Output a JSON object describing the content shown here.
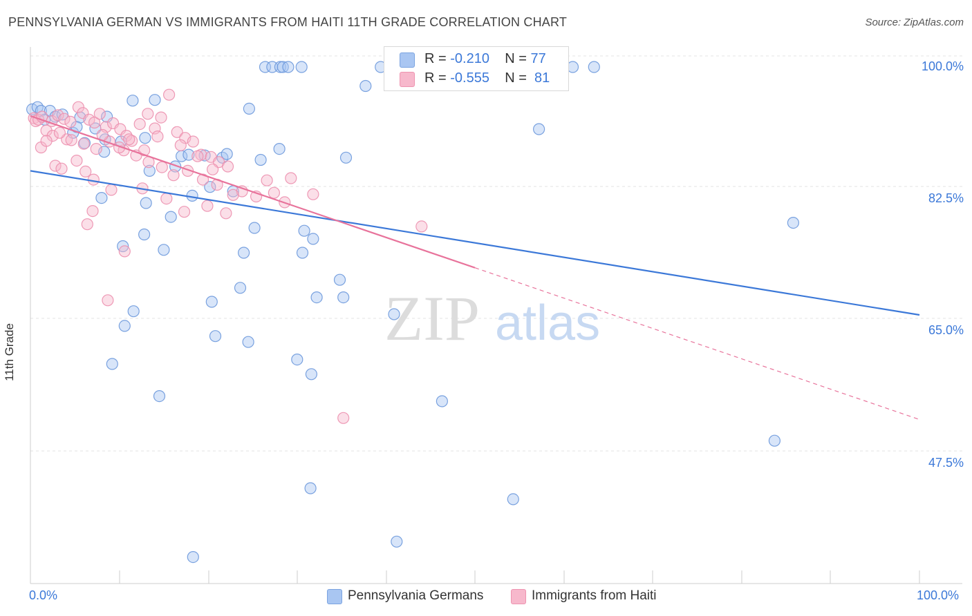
{
  "header": {
    "title": "PENNSYLVANIA GERMAN VS IMMIGRANTS FROM HAITI 11TH GRADE CORRELATION CHART",
    "source": "Source: ZipAtlas.com"
  },
  "watermark": {
    "zip": "ZIP",
    "atlas": "atlas"
  },
  "legend_top": {
    "rows": [
      {
        "r_label": "R = ",
        "r_value": "-0.210",
        "n_label": "N = ",
        "n_value": "77",
        "color": "#a9c6f2"
      },
      {
        "r_label": "R = ",
        "r_value": "-0.555",
        "n_label": "N = ",
        "n_value": "81",
        "color": "#f7b8cc"
      }
    ]
  },
  "legend_bottom": {
    "items": [
      {
        "label": "Pennsylvania Germans",
        "color": "#a9c6f2"
      },
      {
        "label": "Immigrants from Haiti",
        "color": "#f7b8cc"
      }
    ]
  },
  "chart_data": {
    "type": "scatter",
    "title": "PENNSYLVANIA GERMAN VS IMMIGRANTS FROM HAITI 11TH GRADE CORRELATION CHART",
    "xlabel": "",
    "ylabel": "11th Grade",
    "x_tick_labels": [
      "0.0%",
      "100.0%"
    ],
    "y_tick_labels": [
      "100.0%",
      "82.5%",
      "65.0%",
      "47.5%"
    ],
    "y_ticks": [
      100.0,
      82.5,
      65.0,
      47.5
    ],
    "xlim": [
      0,
      100
    ],
    "ylim": [
      33,
      102
    ],
    "grid": true,
    "legend_position": "top-center",
    "series": [
      {
        "name": "Pennsylvania Germans",
        "color": "#3b78d8",
        "fill": "#a9c6f2",
        "trend": {
          "x0": 0,
          "y0": 85.8,
          "x1": 100,
          "y1": 66.1,
          "dashed_from": null
        },
        "points": [
          [
            0.2,
            94.2
          ],
          [
            0.8,
            94.5
          ],
          [
            1.2,
            94.0
          ],
          [
            1.6,
            92.8
          ],
          [
            2.2,
            94.0
          ],
          [
            2.8,
            93.2
          ],
          [
            3.6,
            93.5
          ],
          [
            5.6,
            93.1
          ],
          [
            4.8,
            91.0
          ],
          [
            5.2,
            91.8
          ],
          [
            6.1,
            89.6
          ],
          [
            7.3,
            91.6
          ],
          [
            8.4,
            90.1
          ],
          [
            8.3,
            88.4
          ],
          [
            8.6,
            93.2
          ],
          [
            10.2,
            89.8
          ],
          [
            11.5,
            95.4
          ],
          [
            12.9,
            90.3
          ],
          [
            14.0,
            95.5
          ],
          [
            13.4,
            85.8
          ],
          [
            16.3,
            86.4
          ],
          [
            17.0,
            87.8
          ],
          [
            17.8,
            88.0
          ],
          [
            19.6,
            87.9
          ],
          [
            21.6,
            87.6
          ],
          [
            22.1,
            88.1
          ],
          [
            25.9,
            87.3
          ],
          [
            28.0,
            88.8
          ],
          [
            35.5,
            87.6
          ],
          [
            26.4,
            100.0
          ],
          [
            27.2,
            100.0
          ],
          [
            28.1,
            100.0
          ],
          [
            28.4,
            100.0
          ],
          [
            29.0,
            100.0
          ],
          [
            30.5,
            100.0
          ],
          [
            37.7,
            97.4
          ],
          [
            39.4,
            100.0
          ],
          [
            50.0,
            100.0
          ],
          [
            61.0,
            100.0
          ],
          [
            63.4,
            100.0
          ],
          [
            24.6,
            94.3
          ],
          [
            57.2,
            91.5
          ],
          [
            13.0,
            81.4
          ],
          [
            8.0,
            82.1
          ],
          [
            15.8,
            79.5
          ],
          [
            12.8,
            77.1
          ],
          [
            18.2,
            82.4
          ],
          [
            20.2,
            83.6
          ],
          [
            22.8,
            83.0
          ],
          [
            25.2,
            78.0
          ],
          [
            10.4,
            75.5
          ],
          [
            15.0,
            75.0
          ],
          [
            24.0,
            74.6
          ],
          [
            30.6,
            74.6
          ],
          [
            30.8,
            77.6
          ],
          [
            31.8,
            76.5
          ],
          [
            34.8,
            70.9
          ],
          [
            23.6,
            69.8
          ],
          [
            32.2,
            68.5
          ],
          [
            20.4,
            67.9
          ],
          [
            35.2,
            68.5
          ],
          [
            11.6,
            66.6
          ],
          [
            10.6,
            64.6
          ],
          [
            40.9,
            66.2
          ],
          [
            20.8,
            63.2
          ],
          [
            24.5,
            62.4
          ],
          [
            30.0,
            60.0
          ],
          [
            31.6,
            58.0
          ],
          [
            9.2,
            59.4
          ],
          [
            14.5,
            55.0
          ],
          [
            46.3,
            54.3
          ],
          [
            85.8,
            78.7
          ],
          [
            83.7,
            48.9
          ],
          [
            31.5,
            42.4
          ],
          [
            54.3,
            40.9
          ],
          [
            41.2,
            35.1
          ],
          [
            18.3,
            33.0
          ]
        ]
      },
      {
        "name": "Immigrants from Haiti",
        "color": "#e8739b",
        "fill": "#f7b8cc",
        "trend": {
          "x0": 0,
          "y0": 93.3,
          "x1": 100,
          "y1": 51.8,
          "dashed_from": 50
        },
        "points": [
          [
            0.4,
            93.0
          ],
          [
            0.6,
            92.6
          ],
          [
            0.9,
            92.8
          ],
          [
            1.3,
            93.2
          ],
          [
            1.8,
            91.3
          ],
          [
            2.4,
            92.6
          ],
          [
            3.1,
            93.4
          ],
          [
            3.8,
            92.9
          ],
          [
            4.5,
            92.5
          ],
          [
            5.4,
            94.5
          ],
          [
            5.9,
            93.7
          ],
          [
            6.6,
            92.8
          ],
          [
            7.2,
            92.4
          ],
          [
            7.8,
            93.6
          ],
          [
            8.5,
            91.8
          ],
          [
            9.3,
            92.3
          ],
          [
            10.1,
            91.5
          ],
          [
            10.8,
            90.6
          ],
          [
            11.4,
            89.9
          ],
          [
            12.3,
            92.2
          ],
          [
            13.2,
            93.6
          ],
          [
            14.0,
            91.6
          ],
          [
            14.7,
            93.1
          ],
          [
            15.6,
            96.2
          ],
          [
            16.5,
            91.1
          ],
          [
            17.4,
            90.3
          ],
          [
            18.3,
            89.8
          ],
          [
            19.2,
            88.0
          ],
          [
            20.3,
            87.7
          ],
          [
            21.2,
            87.0
          ],
          [
            22.2,
            86.4
          ],
          [
            2.5,
            90.6
          ],
          [
            4.1,
            90.1
          ],
          [
            6.0,
            89.5
          ],
          [
            7.4,
            88.8
          ],
          [
            8.9,
            89.8
          ],
          [
            10.5,
            88.6
          ],
          [
            11.9,
            87.9
          ],
          [
            13.3,
            87.0
          ],
          [
            14.8,
            86.3
          ],
          [
            16.1,
            85.2
          ],
          [
            17.7,
            85.8
          ],
          [
            19.4,
            84.6
          ],
          [
            21.0,
            83.9
          ],
          [
            23.8,
            83.0
          ],
          [
            25.4,
            82.3
          ],
          [
            26.6,
            84.5
          ],
          [
            27.4,
            82.8
          ],
          [
            28.6,
            81.5
          ],
          [
            29.3,
            84.8
          ],
          [
            31.8,
            82.6
          ],
          [
            10.0,
            89.0
          ],
          [
            1.2,
            89.0
          ],
          [
            2.8,
            86.5
          ],
          [
            3.5,
            86.1
          ],
          [
            5.2,
            87.2
          ],
          [
            6.2,
            85.7
          ],
          [
            7.1,
            84.6
          ],
          [
            9.1,
            83.2
          ],
          [
            12.6,
            83.4
          ],
          [
            15.3,
            82.0
          ],
          [
            19.9,
            81.0
          ],
          [
            22.8,
            82.5
          ],
          [
            6.4,
            78.5
          ],
          [
            7.0,
            80.3
          ],
          [
            10.6,
            74.8
          ],
          [
            8.7,
            68.1
          ],
          [
            17.3,
            80.2
          ],
          [
            22.0,
            80.0
          ],
          [
            44.0,
            78.2
          ],
          [
            35.2,
            52.0
          ],
          [
            1.8,
            89.9
          ],
          [
            3.3,
            91.0
          ],
          [
            4.6,
            90.0
          ],
          [
            8.1,
            90.7
          ],
          [
            11.1,
            90.1
          ],
          [
            12.8,
            88.6
          ],
          [
            14.3,
            90.5
          ],
          [
            16.9,
            89.3
          ],
          [
            18.8,
            87.8
          ],
          [
            20.5,
            86.0
          ]
        ]
      }
    ]
  }
}
